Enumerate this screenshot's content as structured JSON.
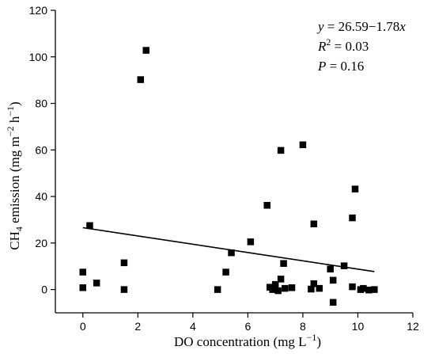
{
  "chart_data": {
    "type": "scatter",
    "xlabel": {
      "main": "DO concentration (mg L",
      "sup": "−1",
      "tail": ")"
    },
    "ylabel": {
      "a": "CH",
      "sub": "4",
      "b": " emission (mg m",
      "sup1": "−2",
      "c": " h",
      "sup2": "−1",
      "d": ")"
    },
    "xlim": [
      -1,
      12
    ],
    "ylim": [
      -10,
      120
    ],
    "xticks": [
      0,
      2,
      4,
      6,
      8,
      10,
      12
    ],
    "yticks": [
      0,
      20,
      40,
      60,
      80,
      100,
      120
    ],
    "grid": false,
    "annotations": {
      "equation": {
        "y": "y",
        "eq": " = 26.59−1.78",
        "x": "x"
      },
      "r2": {
        "r": "R",
        "sup": "2",
        "eq": " = 0.03"
      },
      "p": {
        "p": "P",
        "eq": " = 0.16"
      }
    },
    "fit_line": {
      "intercept": 26.59,
      "slope": -1.78,
      "x_range": [
        0,
        10.6
      ]
    },
    "points": [
      {
        "x": 0.0,
        "y": 7.5
      },
      {
        "x": 0.0,
        "y": 0.8
      },
      {
        "x": 0.25,
        "y": 27.5
      },
      {
        "x": 0.5,
        "y": 2.8
      },
      {
        "x": 1.5,
        "y": 11.5
      },
      {
        "x": 1.5,
        "y": 0.0
      },
      {
        "x": 2.1,
        "y": 90.2
      },
      {
        "x": 2.3,
        "y": 102.8
      },
      {
        "x": 4.9,
        "y": 0.0
      },
      {
        "x": 5.2,
        "y": 7.5
      },
      {
        "x": 5.4,
        "y": 15.8
      },
      {
        "x": 6.1,
        "y": 20.5
      },
      {
        "x": 6.7,
        "y": 36.2
      },
      {
        "x": 6.8,
        "y": 1.0
      },
      {
        "x": 6.9,
        "y": 0.0
      },
      {
        "x": 7.0,
        "y": 2.2
      },
      {
        "x": 7.0,
        "y": 0.2
      },
      {
        "x": 7.1,
        "y": -0.5
      },
      {
        "x": 7.2,
        "y": 4.5
      },
      {
        "x": 7.2,
        "y": 59.8
      },
      {
        "x": 7.3,
        "y": 11.2
      },
      {
        "x": 7.35,
        "y": 0.5
      },
      {
        "x": 7.6,
        "y": 0.8
      },
      {
        "x": 8.0,
        "y": 62.2
      },
      {
        "x": 8.3,
        "y": 0.2
      },
      {
        "x": 8.4,
        "y": 28.2
      },
      {
        "x": 8.4,
        "y": 2.5
      },
      {
        "x": 8.6,
        "y": 0.5
      },
      {
        "x": 9.0,
        "y": 8.8
      },
      {
        "x": 9.1,
        "y": 4.0
      },
      {
        "x": 9.1,
        "y": -5.5
      },
      {
        "x": 9.5,
        "y": 10.2
      },
      {
        "x": 9.8,
        "y": 30.8
      },
      {
        "x": 9.8,
        "y": 1.2
      },
      {
        "x": 9.9,
        "y": 43.2
      },
      {
        "x": 10.1,
        "y": 0.0
      },
      {
        "x": 10.2,
        "y": 0.5
      },
      {
        "x": 10.4,
        "y": -0.2
      },
      {
        "x": 10.6,
        "y": 0.0
      }
    ]
  }
}
